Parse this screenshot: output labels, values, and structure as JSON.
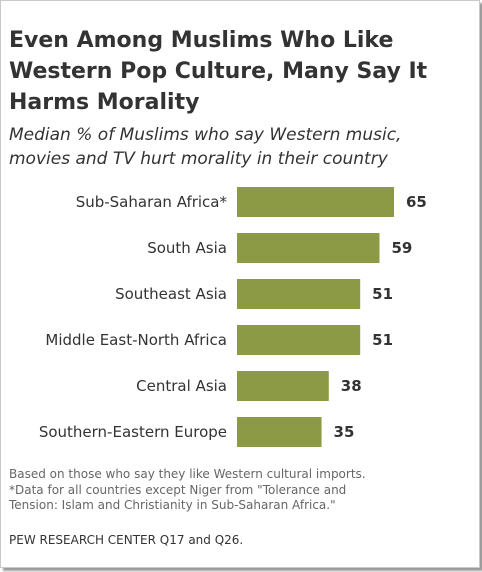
{
  "title_lines": [
    "Even Among Muslims Who Like",
    "Western Pop Culture, Many Say It",
    "Harms Morality"
  ],
  "subtitle_lines": [
    "Median % of Muslims who say Western music,",
    "movies and TV hurt morality in their country"
  ],
  "notes": [
    "Based on those who  say they like Western cultural imports.",
    "*Data for all countries except Niger from \"Tolerance and",
    "Tension: Islam and Christianity in Sub-Saharan Africa.\""
  ],
  "source": "PEW RESEARCH  CENTER Q17 and Q26.",
  "colors": {
    "bar": "#8c9a46",
    "text": "#333333",
    "note": "#666666"
  },
  "chart_data": {
    "type": "bar",
    "orientation": "horizontal",
    "categories": [
      "Sub-Saharan Africa*",
      "South Asia",
      "Southeast Asia",
      "Middle East-North Africa",
      "Central Asia",
      "Southern-Eastern Europe"
    ],
    "values": [
      65,
      59,
      51,
      51,
      38,
      35
    ],
    "value_labels": [
      "65",
      "59",
      "51",
      "51",
      "38",
      "35"
    ],
    "xlim": [
      0,
      65
    ],
    "grid": false,
    "legend": "none"
  }
}
